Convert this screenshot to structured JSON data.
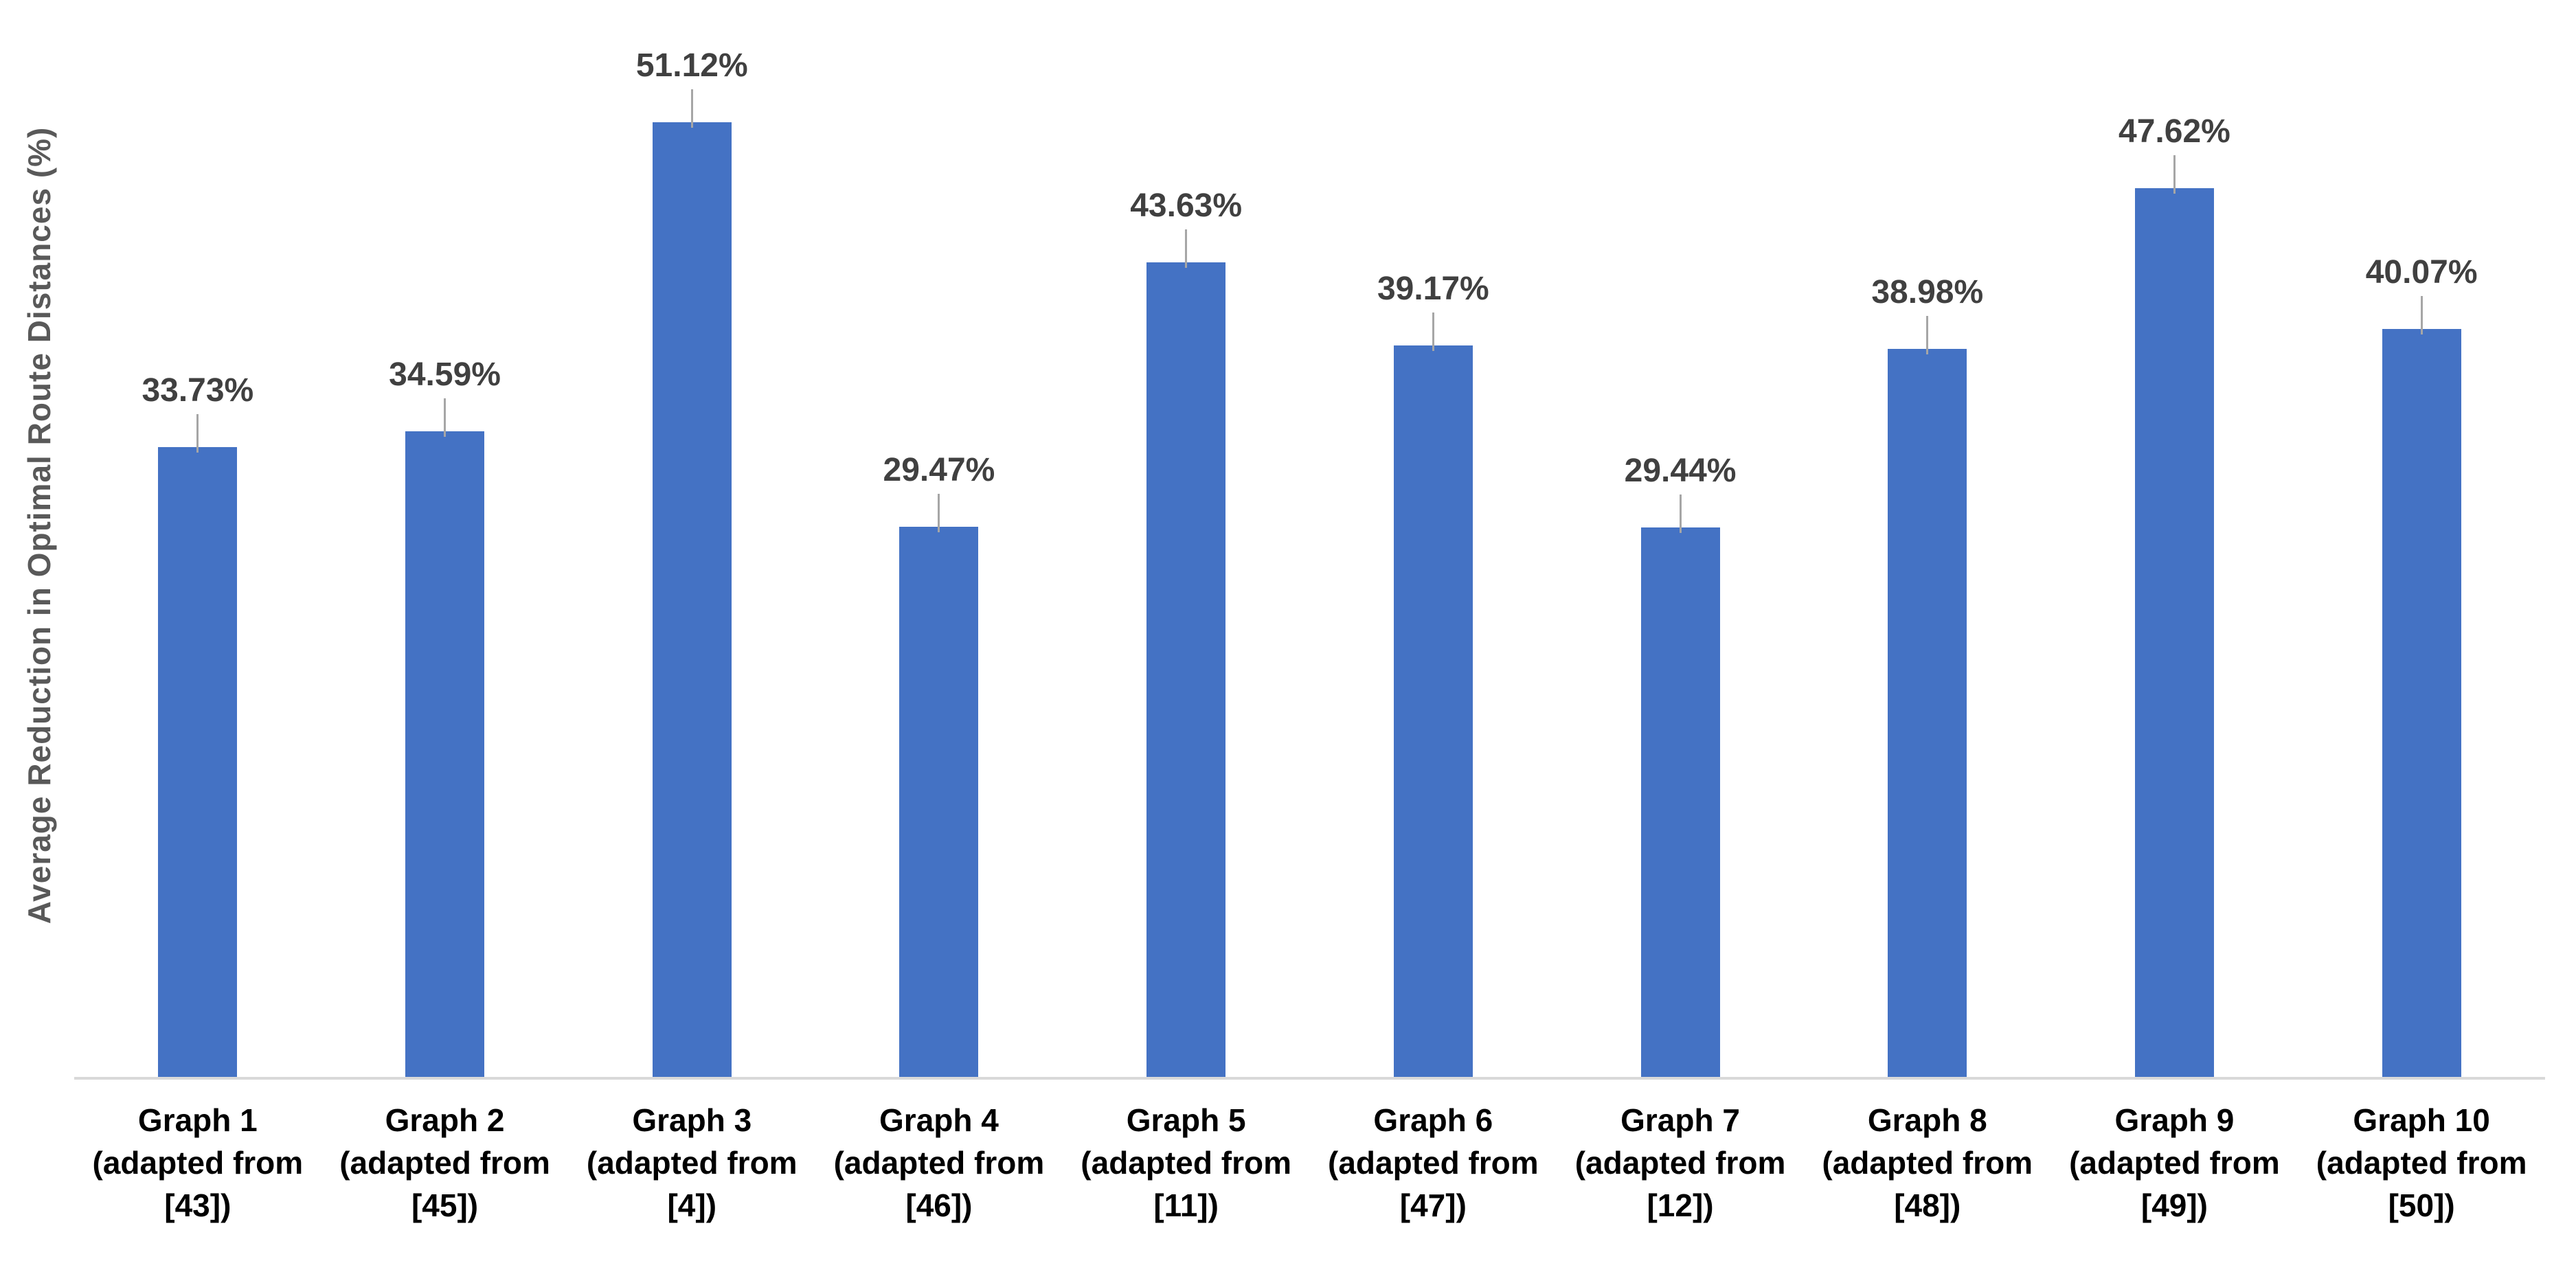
{
  "chart_data": {
    "type": "bar",
    "title": "",
    "xlabel": "",
    "ylabel": "Average Reduction in Optimal Route Distances (%)",
    "ylim": [
      0,
      55
    ],
    "grid": false,
    "legend": false,
    "categories": [
      {
        "line1": "Graph 1",
        "line2": "(adapted from",
        "line3": "[43])"
      },
      {
        "line1": "Graph 2",
        "line2": "(adapted from",
        "line3": "[45])"
      },
      {
        "line1": "Graph 3",
        "line2": "(adapted from",
        "line3": "[4])"
      },
      {
        "line1": "Graph 4",
        "line2": "(adapted from",
        "line3": "[46])"
      },
      {
        "line1": "Graph 5",
        "line2": "(adapted from",
        "line3": "[11])"
      },
      {
        "line1": "Graph 6",
        "line2": "(adapted from",
        "line3": "[47])"
      },
      {
        "line1": "Graph 7",
        "line2": "(adapted from",
        "line3": "[12])"
      },
      {
        "line1": "Graph 8",
        "line2": "(adapted from",
        "line3": "[48])"
      },
      {
        "line1": "Graph 9",
        "line2": "(adapted from",
        "line3": "[49])"
      },
      {
        "line1": "Graph 10",
        "line2": "(adapted from",
        "line3": "[50])"
      }
    ],
    "series": [
      {
        "name": "Average Reduction in Optimal Route Distances",
        "values": [
          33.73,
          34.59,
          51.12,
          29.47,
          43.63,
          39.17,
          29.44,
          38.98,
          47.62,
          40.07
        ],
        "data_labels": [
          "33.73%",
          "34.59%",
          "51.12%",
          "29.47%",
          "43.63%",
          "39.17%",
          "29.44%",
          "38.98%",
          "47.62%",
          "40.07%"
        ]
      }
    ],
    "colors": {
      "bar_fill": "#4472C4",
      "data_label_text": "#404040",
      "category_label_text": "#000000",
      "y_axis_title_text": "#595959",
      "axis_line": "#D9D9D9",
      "leader_line": "#A6A6A6",
      "background": "#FFFFFF"
    }
  }
}
